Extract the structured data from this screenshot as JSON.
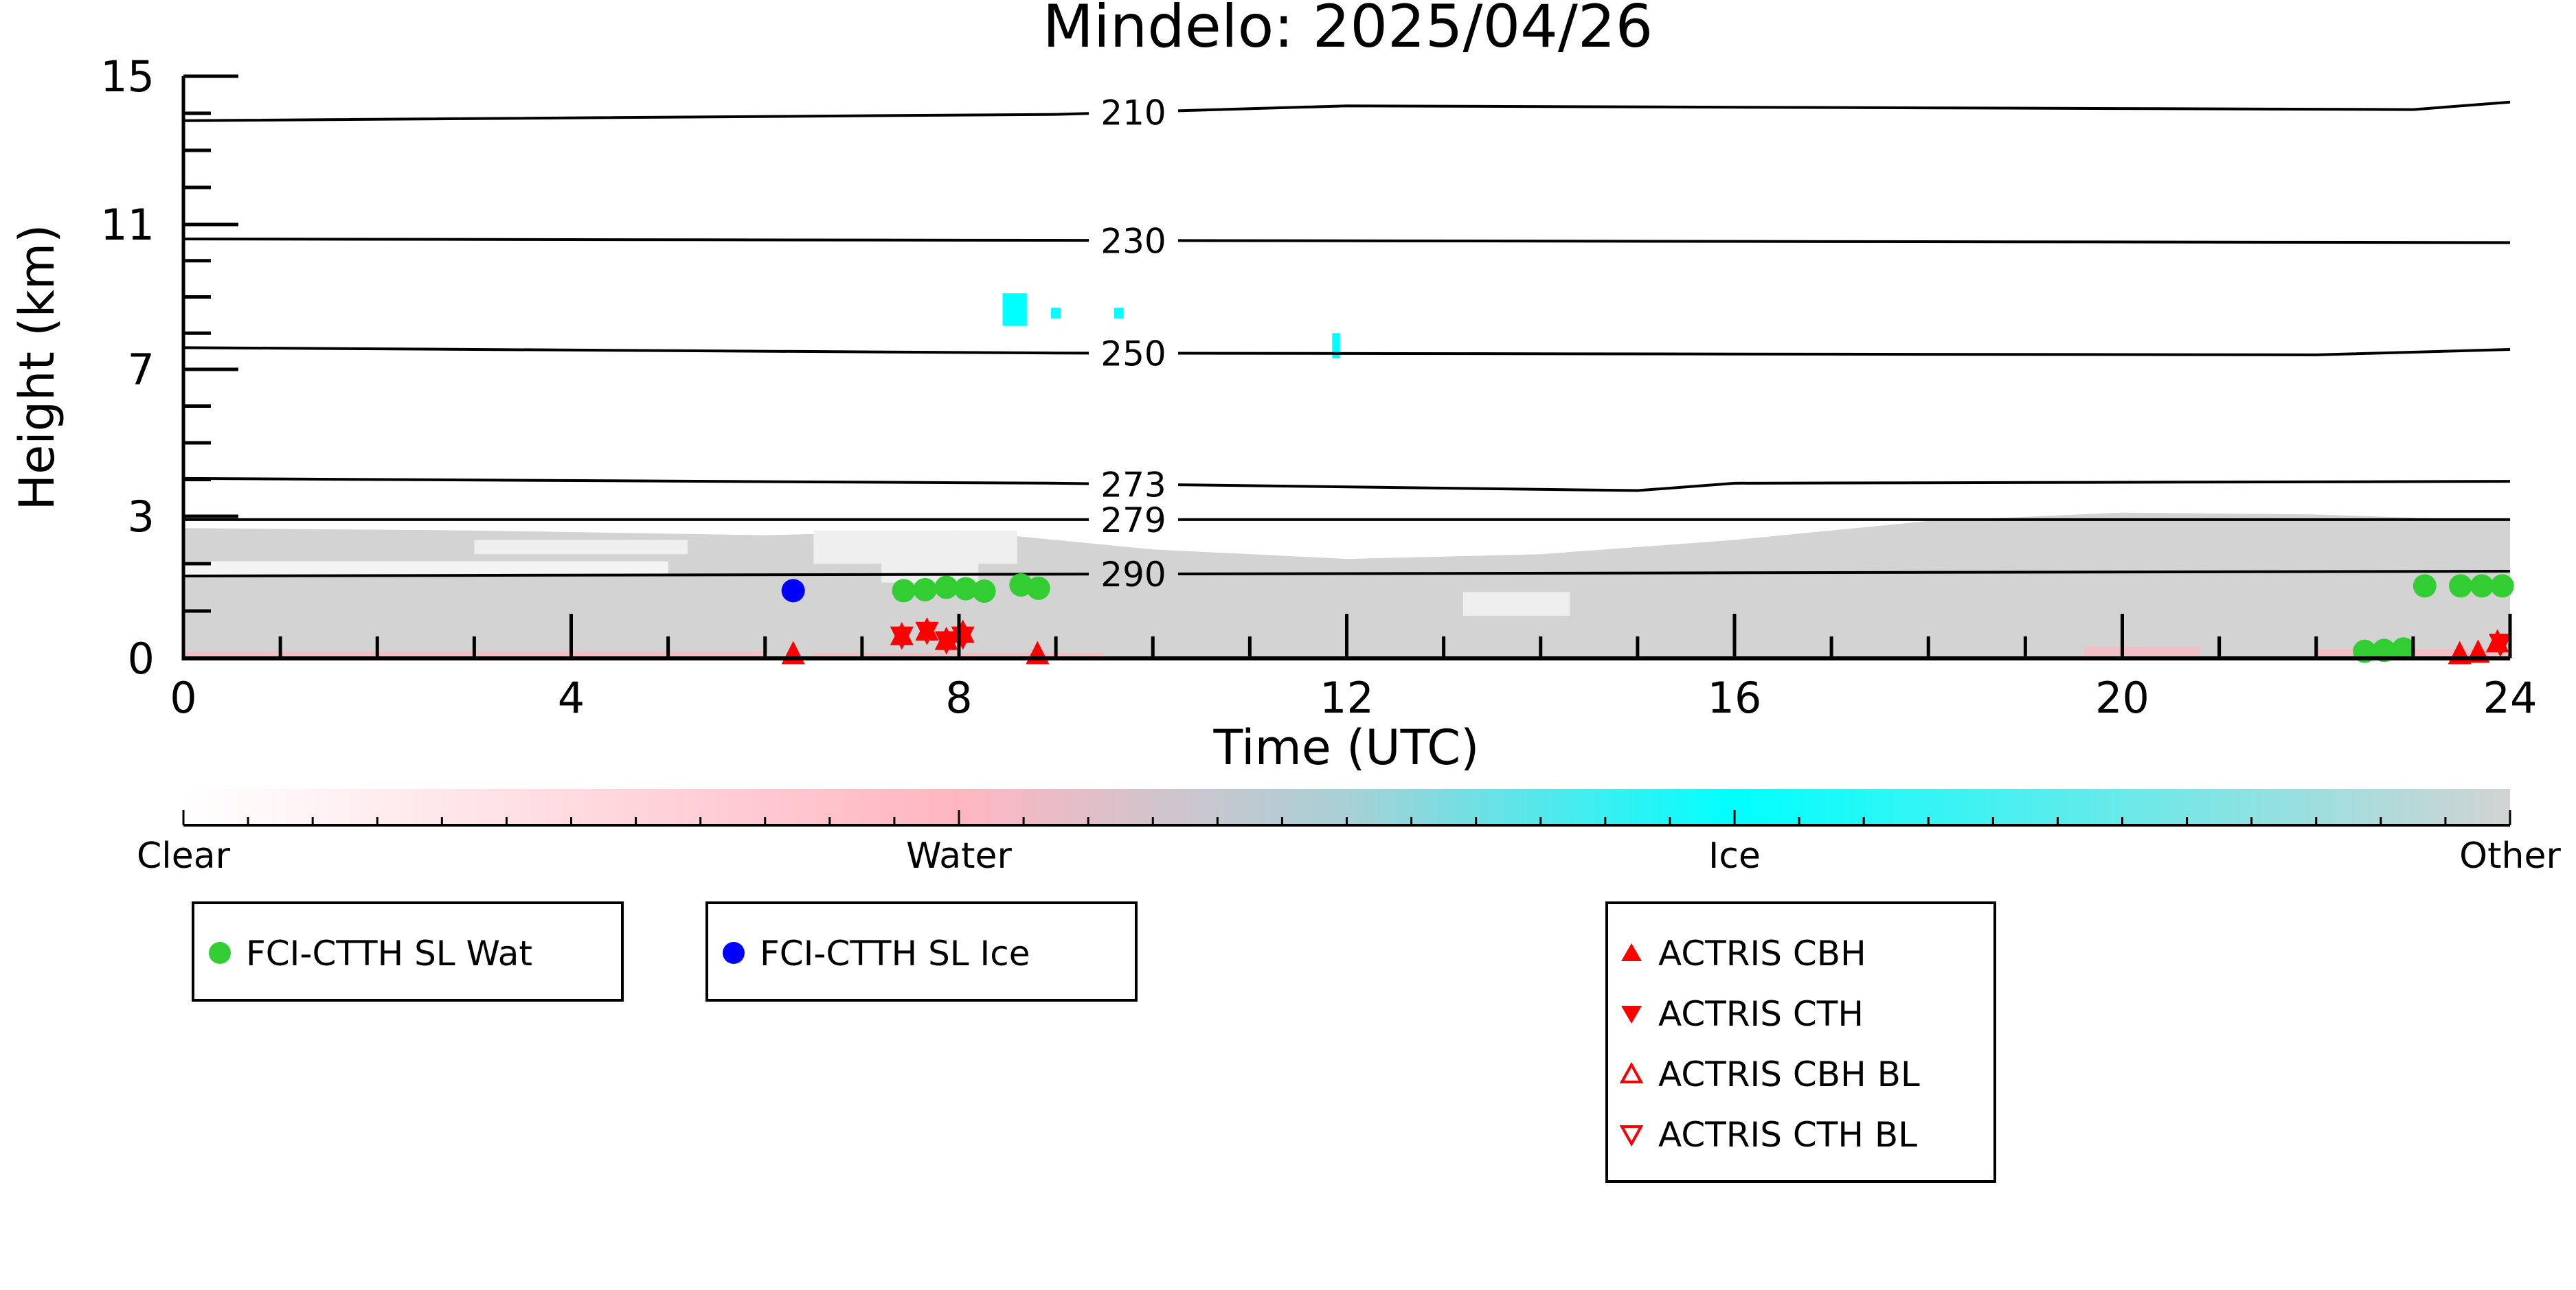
{
  "chart_data": {
    "type": "scatter",
    "title": "Mindelo: 2025/04/26",
    "xlabel": "Time (UTC)",
    "ylabel": "Height (km)",
    "xlim": [
      0,
      24
    ],
    "ylim": [
      0,
      15
    ],
    "xticks": [
      0,
      4,
      8,
      12,
      16,
      20,
      24
    ],
    "xtick_labels": [
      "0",
      "4",
      "8",
      "12",
      "16",
      "20",
      "24"
    ],
    "yticks": [
      0,
      3,
      7,
      11,
      15
    ],
    "ytick_labels": [
      "0",
      "3",
      "7",
      "11",
      "15"
    ],
    "contours": [
      {
        "label": "210",
        "t": [
          0,
          9,
          12,
          23,
          24
        ],
        "h": [
          13.8,
          13.97,
          14.2,
          14.1,
          14.3
        ]
      },
      {
        "label": "230",
        "t": [
          0,
          24
        ],
        "h": [
          10.6,
          10.5
        ]
      },
      {
        "label": "250",
        "t": [
          0,
          9,
          22,
          24
        ],
        "h": [
          7.6,
          7.45,
          7.4,
          7.55
        ]
      },
      {
        "label": "273",
        "t": [
          0,
          9,
          15,
          16,
          24
        ],
        "h": [
          4.03,
          3.9,
          3.7,
          3.9,
          3.95
        ]
      },
      {
        "label": "279",
        "t": [
          0,
          24
        ],
        "h": [
          2.93,
          2.93
        ]
      },
      {
        "label": "290",
        "t": [
          0,
          24
        ],
        "h": [
          1.74,
          1.84
        ]
      }
    ],
    "series": [
      {
        "name": "FCI-CTTH SL Wat",
        "color": "#32cd32",
        "marker": "circle",
        "t": [
          7.43,
          7.65,
          7.87,
          8.07,
          8.26,
          8.64,
          8.82,
          22.5,
          22.7,
          22.9,
          23.12,
          23.49,
          23.71,
          23.92
        ],
        "h": [
          1.43,
          1.45,
          1.5,
          1.47,
          1.42,
          1.55,
          1.48,
          0.15,
          0.17,
          0.2,
          1.53,
          1.53,
          1.53,
          1.53
        ]
      },
      {
        "name": "FCI-CTTH SL Ice",
        "color": "#0000ff",
        "marker": "circle",
        "t": [
          6.29
        ],
        "h": [
          1.43
        ]
      },
      {
        "name": "ACTRIS CBH",
        "color": "#ff0000",
        "marker": "triangle-up",
        "t": [
          6.29,
          7.41,
          7.67,
          7.87,
          8.04,
          8.81,
          23.48,
          23.67,
          23.87
        ],
        "h": [
          0.05,
          0.45,
          0.55,
          0.35,
          0.5,
          0.05,
          0.05,
          0.08,
          0.3
        ]
      },
      {
        "name": "ACTRIS CTH",
        "color": "#ff0000",
        "marker": "triangle-down",
        "t": [
          7.41,
          7.67,
          7.87,
          8.04,
          23.9
        ],
        "h": [
          0.5,
          0.6,
          0.4,
          0.5,
          0.35
        ]
      },
      {
        "name": "ACTRIS CBH BL",
        "color": "#ff0000",
        "marker": "triangle-up-open",
        "t": [],
        "h": []
      },
      {
        "name": "ACTRIS CTH BL",
        "color": "#ff0000",
        "marker": "triangle-down-open",
        "t": [],
        "h": []
      }
    ],
    "colorbar": {
      "labels": [
        "Clear",
        "Water",
        "Ice",
        "Other"
      ],
      "colors": [
        "#ffffff",
        "#ffb6c1",
        "#00ffff",
        "#d3d3d3"
      ]
    },
    "legend_placement": "below"
  }
}
